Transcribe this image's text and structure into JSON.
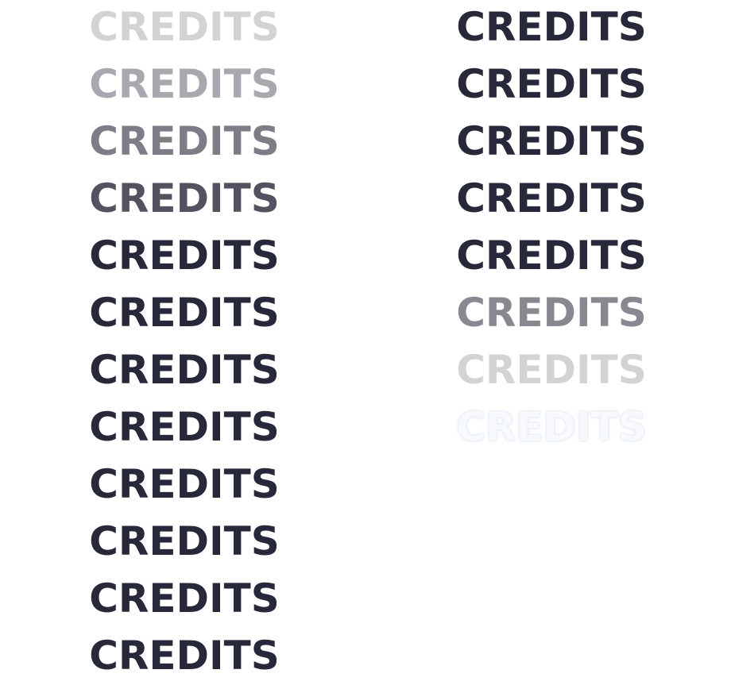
{
  "text_color": "#272839",
  "background": "#ffffff",
  "left_column": {
    "items": [
      {
        "label": "CREDITS",
        "opacity": 0.2
      },
      {
        "label": "CREDITS",
        "opacity": 0.4
      },
      {
        "label": "CREDITS",
        "opacity": 0.6
      },
      {
        "label": "CREDITS",
        "opacity": 0.8
      },
      {
        "label": "CREDITS",
        "opacity": 1.0
      },
      {
        "label": "CREDITS",
        "opacity": 1.0
      },
      {
        "label": "CREDITS",
        "opacity": 1.0
      },
      {
        "label": "CREDITS",
        "opacity": 1.0
      },
      {
        "label": "CREDITS",
        "opacity": 1.0
      },
      {
        "label": "CREDITS",
        "opacity": 1.0
      },
      {
        "label": "CREDITS",
        "opacity": 1.0
      },
      {
        "label": "CREDITS",
        "opacity": 1.0
      }
    ]
  },
  "right_column": {
    "items": [
      {
        "label": "CREDITS",
        "opacity": 1.0
      },
      {
        "label": "CREDITS",
        "opacity": 1.0
      },
      {
        "label": "CREDITS",
        "opacity": 1.0
      },
      {
        "label": "CREDITS",
        "opacity": 1.0
      },
      {
        "label": "CREDITS",
        "opacity": 1.0
      },
      {
        "label": "CREDITS",
        "opacity": 0.55
      },
      {
        "label": "CREDITS",
        "opacity": 0.2
      },
      {
        "label": "CREDITS",
        "opacity": 1.0,
        "style": "outline"
      }
    ]
  }
}
